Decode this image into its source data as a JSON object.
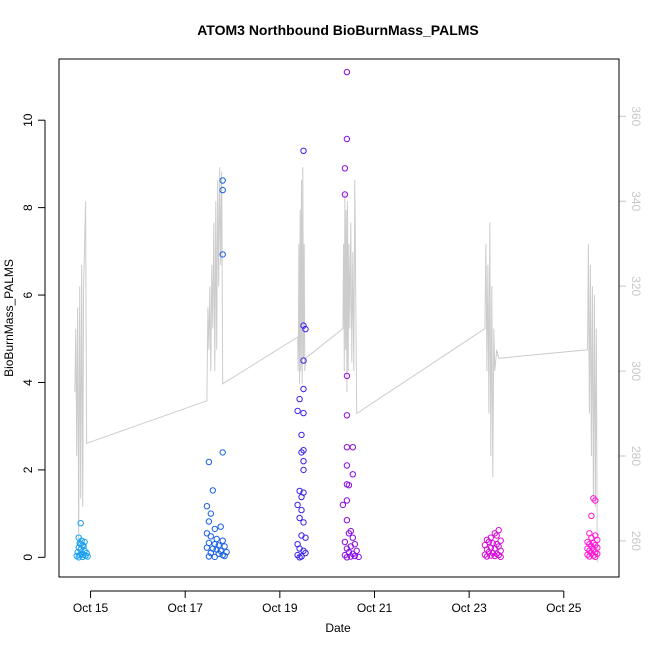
{
  "chart_data": {
    "type": "scatter",
    "title": "ATOM3 Northbound BioBurnMass_PALMS",
    "xlabel": "Date",
    "ylabel": "BioBurnMass_PALMS",
    "x_axis_type": "date",
    "xlim": [
      "2017-10-14T08:00",
      "2017-10-26T04:00"
    ],
    "ylim": [
      -0.45,
      11.4
    ],
    "y2lim": [
      251.5,
      373.5
    ],
    "x_ticks": [
      {
        "date": "2017-10-15",
        "label": "Oct 15"
      },
      {
        "date": "2017-10-17",
        "label": "Oct 17"
      },
      {
        "date": "2017-10-19",
        "label": "Oct 19"
      },
      {
        "date": "2017-10-21",
        "label": "Oct 21"
      },
      {
        "date": "2017-10-23",
        "label": "Oct 23"
      },
      {
        "date": "2017-10-25",
        "label": "Oct 25"
      }
    ],
    "y_ticks": [
      {
        "value": 0,
        "label": "0"
      },
      {
        "value": 2,
        "label": "2"
      },
      {
        "value": 4,
        "label": "4"
      },
      {
        "value": 6,
        "label": "6"
      },
      {
        "value": 8,
        "label": "8"
      },
      {
        "value": 10,
        "label": "10"
      }
    ],
    "y2_ticks": [
      {
        "value": 260,
        "label": "260"
      },
      {
        "value": 280,
        "label": "280"
      },
      {
        "value": 300,
        "label": "300"
      },
      {
        "value": 320,
        "label": "320"
      },
      {
        "value": 340,
        "label": "340"
      },
      {
        "value": 360,
        "label": "360"
      }
    ],
    "grid": false,
    "legend": "none",
    "secondary_line_color": "#cccccc",
    "secondary_axis_color": "#c8c8c8",
    "series": [
      {
        "color": "#1a9ff0",
        "points": [
          [
            "2017-10-14T19:00",
            0.78
          ],
          [
            "2017-10-14T18:00",
            0.45
          ],
          [
            "2017-10-14T19:30",
            0.38
          ],
          [
            "2017-10-14T18:30",
            0.32
          ],
          [
            "2017-10-14T20:00",
            0.28
          ],
          [
            "2017-10-14T20:30",
            0.25
          ],
          [
            "2017-10-14T18:00",
            0.22
          ],
          [
            "2017-10-14T19:00",
            0.18
          ],
          [
            "2017-10-14T21:00",
            0.15
          ],
          [
            "2017-10-14T17:30",
            0.12
          ],
          [
            "2017-10-14T22:00",
            0.1
          ],
          [
            "2017-10-14T19:30",
            0.08
          ],
          [
            "2017-10-14T20:30",
            0.06
          ],
          [
            "2017-10-14T18:30",
            0.05
          ],
          [
            "2017-10-14T21:30",
            0.04
          ],
          [
            "2017-10-14T17:00",
            0.03
          ],
          [
            "2017-10-14T22:30",
            0.02
          ],
          [
            "2017-10-14T20:00",
            0.01
          ],
          [
            "2017-10-14T19:00",
            0.3
          ],
          [
            "2017-10-14T21:00",
            0.35
          ],
          [
            "2017-10-14T18:00",
            0.0
          ]
        ]
      },
      {
        "color": "#1760e6",
        "points": [
          [
            "2017-10-17T19:00",
            8.62
          ],
          [
            "2017-10-17T19:00",
            8.4
          ],
          [
            "2017-10-17T19:00",
            6.93
          ],
          [
            "2017-10-17T19:00",
            2.4
          ],
          [
            "2017-10-17T12:00",
            2.18
          ],
          [
            "2017-10-17T14:00",
            1.53
          ],
          [
            "2017-10-17T11:00",
            1.17
          ],
          [
            "2017-10-17T13:00",
            1.0
          ],
          [
            "2017-10-17T12:00",
            0.82
          ],
          [
            "2017-10-17T18:00",
            0.7
          ],
          [
            "2017-10-17T15:00",
            0.65
          ],
          [
            "2017-10-17T11:00",
            0.55
          ],
          [
            "2017-10-17T13:00",
            0.48
          ],
          [
            "2017-10-17T16:00",
            0.42
          ],
          [
            "2017-10-17T19:00",
            0.38
          ],
          [
            "2017-10-17T12:00",
            0.33
          ],
          [
            "2017-10-17T15:00",
            0.3
          ],
          [
            "2017-10-17T17:00",
            0.27
          ],
          [
            "2017-10-17T20:00",
            0.25
          ],
          [
            "2017-10-17T11:00",
            0.22
          ],
          [
            "2017-10-17T14:00",
            0.2
          ],
          [
            "2017-10-17T16:00",
            0.18
          ],
          [
            "2017-10-17T18:00",
            0.15
          ],
          [
            "2017-10-17T21:00",
            0.12
          ],
          [
            "2017-10-17T13:00",
            0.1
          ],
          [
            "2017-10-17T17:00",
            0.08
          ],
          [
            "2017-10-17T19:00",
            0.05
          ],
          [
            "2017-10-17T20:00",
            0.03
          ],
          [
            "2017-10-17T12:00",
            0.02
          ],
          [
            "2017-10-17T15:00",
            0.01
          ]
        ]
      },
      {
        "color": "#3a22e8",
        "points": [
          [
            "2017-10-19T12:00",
            9.3
          ],
          [
            "2017-10-19T12:00",
            5.3
          ],
          [
            "2017-10-19T13:00",
            5.22
          ],
          [
            "2017-10-19T12:00",
            4.5
          ],
          [
            "2017-10-19T12:00",
            3.85
          ],
          [
            "2017-10-19T10:00",
            3.62
          ],
          [
            "2017-10-19T09:00",
            3.35
          ],
          [
            "2017-10-19T12:00",
            3.3
          ],
          [
            "2017-10-19T11:00",
            2.8
          ],
          [
            "2017-10-19T12:00",
            2.45
          ],
          [
            "2017-10-19T11:00",
            2.4
          ],
          [
            "2017-10-19T12:00",
            2.2
          ],
          [
            "2017-10-19T12:00",
            2.0
          ],
          [
            "2017-10-19T10:00",
            1.52
          ],
          [
            "2017-10-19T12:00",
            1.48
          ],
          [
            "2017-10-19T11:00",
            1.38
          ],
          [
            "2017-10-19T09:00",
            1.2
          ],
          [
            "2017-10-19T11:00",
            1.08
          ],
          [
            "2017-10-19T10:00",
            0.9
          ],
          [
            "2017-10-19T12:00",
            0.8
          ],
          [
            "2017-10-19T11:00",
            0.5
          ],
          [
            "2017-10-19T13:00",
            0.45
          ],
          [
            "2017-10-19T09:00",
            0.3
          ],
          [
            "2017-10-19T10:00",
            0.2
          ],
          [
            "2017-10-19T12:00",
            0.15
          ],
          [
            "2017-10-19T13:00",
            0.1
          ],
          [
            "2017-10-19T09:00",
            0.05
          ],
          [
            "2017-10-19T11:00",
            0.02
          ],
          [
            "2017-10-19T10:00",
            0.0
          ]
        ]
      },
      {
        "color": "#8a0be3",
        "points": [
          [
            "2017-10-20T10:00",
            11.1
          ],
          [
            "2017-10-20T10:00",
            9.57
          ],
          [
            "2017-10-20T09:00",
            8.9
          ],
          [
            "2017-10-20T09:00",
            8.3
          ],
          [
            "2017-10-20T10:00",
            4.15
          ],
          [
            "2017-10-20T10:00",
            3.25
          ],
          [
            "2017-10-20T10:00",
            2.52
          ],
          [
            "2017-10-20T13:00",
            2.52
          ],
          [
            "2017-10-20T10:00",
            2.1
          ],
          [
            "2017-10-20T13:00",
            1.9
          ],
          [
            "2017-10-20T10:00",
            1.67
          ],
          [
            "2017-10-20T11:00",
            1.65
          ],
          [
            "2017-10-20T10:00",
            1.3
          ],
          [
            "2017-10-20T08:00",
            1.2
          ],
          [
            "2017-10-20T10:00",
            0.85
          ],
          [
            "2017-10-20T12:00",
            0.6
          ],
          [
            "2017-10-20T11:00",
            0.55
          ],
          [
            "2017-10-20T13:00",
            0.45
          ],
          [
            "2017-10-20T09:00",
            0.35
          ],
          [
            "2017-10-20T14:00",
            0.3
          ],
          [
            "2017-10-20T12:00",
            0.25
          ],
          [
            "2017-10-20T10:00",
            0.2
          ],
          [
            "2017-10-20T15:00",
            0.15
          ],
          [
            "2017-10-20T11:00",
            0.12
          ],
          [
            "2017-10-20T13:00",
            0.08
          ],
          [
            "2017-10-20T09:00",
            0.05
          ],
          [
            "2017-10-20T14:00",
            0.03
          ],
          [
            "2017-10-20T12:00",
            0.02
          ],
          [
            "2017-10-20T16:00",
            0.01
          ],
          [
            "2017-10-20T10:00",
            0.0
          ]
        ]
      },
      {
        "color": "#d40cd6",
        "points": [
          [
            "2017-10-23T15:00",
            0.62
          ],
          [
            "2017-10-23T13:00",
            0.55
          ],
          [
            "2017-10-23T14:00",
            0.5
          ],
          [
            "2017-10-23T11:00",
            0.45
          ],
          [
            "2017-10-23T09:00",
            0.4
          ],
          [
            "2017-10-23T16:00",
            0.38
          ],
          [
            "2017-10-23T10:00",
            0.35
          ],
          [
            "2017-10-23T12:00",
            0.32
          ],
          [
            "2017-10-23T14:00",
            0.3
          ],
          [
            "2017-10-23T08:00",
            0.28
          ],
          [
            "2017-10-23T15:00",
            0.25
          ],
          [
            "2017-10-23T11:00",
            0.22
          ],
          [
            "2017-10-23T13:00",
            0.2
          ],
          [
            "2017-10-23T09:00",
            0.18
          ],
          [
            "2017-10-23T16:00",
            0.15
          ],
          [
            "2017-10-23T10:00",
            0.12
          ],
          [
            "2017-10-23T12:00",
            0.1
          ],
          [
            "2017-10-23T14:00",
            0.08
          ],
          [
            "2017-10-23T08:00",
            0.06
          ],
          [
            "2017-10-23T15:00",
            0.05
          ],
          [
            "2017-10-23T11:00",
            0.04
          ],
          [
            "2017-10-23T13:00",
            0.03
          ],
          [
            "2017-10-23T09:00",
            0.02
          ],
          [
            "2017-10-23T16:00",
            0.01
          ]
        ]
      },
      {
        "color": "#ff18d8",
        "points": [
          [
            "2017-10-25T15:00",
            1.35
          ],
          [
            "2017-10-25T16:00",
            1.3
          ],
          [
            "2017-10-25T14:00",
            0.95
          ],
          [
            "2017-10-25T13:00",
            0.55
          ],
          [
            "2017-10-25T16:00",
            0.5
          ],
          [
            "2017-10-25T14:00",
            0.45
          ],
          [
            "2017-10-25T17:00",
            0.4
          ],
          [
            "2017-10-25T12:00",
            0.35
          ],
          [
            "2017-10-25T15:00",
            0.32
          ],
          [
            "2017-10-25T13:00",
            0.3
          ],
          [
            "2017-10-25T16:00",
            0.28
          ],
          [
            "2017-10-25T14:00",
            0.25
          ],
          [
            "2017-10-25T17:00",
            0.22
          ],
          [
            "2017-10-25T12:00",
            0.2
          ],
          [
            "2017-10-25T15:00",
            0.18
          ],
          [
            "2017-10-25T13:00",
            0.15
          ],
          [
            "2017-10-25T16:00",
            0.12
          ],
          [
            "2017-10-25T14:00",
            0.1
          ],
          [
            "2017-10-25T17:00",
            0.08
          ],
          [
            "2017-10-25T12:00",
            0.06
          ],
          [
            "2017-10-25T15:00",
            0.04
          ],
          [
            "2017-10-25T13:00",
            0.02
          ],
          [
            "2017-10-25T16:00",
            0.01
          ]
        ]
      }
    ],
    "secondary_line": {
      "axis": "right",
      "points": [
        [
          "2017-10-14T16:00",
          295
        ],
        [
          "2017-10-14T16:30",
          310
        ],
        [
          "2017-10-14T17:00",
          280
        ],
        [
          "2017-10-14T17:30",
          315
        ],
        [
          "2017-10-14T18:00",
          260
        ],
        [
          "2017-10-14T18:30",
          320
        ],
        [
          "2017-10-14T19:00",
          270
        ],
        [
          "2017-10-14T19:30",
          325
        ],
        [
          "2017-10-14T20:00",
          268
        ],
        [
          "2017-10-14T20:30",
          320
        ],
        [
          "2017-10-14T21:00",
          330
        ],
        [
          "2017-10-14T21:30",
          340
        ],
        [
          "2017-10-14T22:00",
          283
        ],
        [
          "2017-10-17T11:00",
          293
        ],
        [
          "2017-10-17T11:30",
          315
        ],
        [
          "2017-10-17T12:00",
          305
        ],
        [
          "2017-10-17T12:30",
          320
        ],
        [
          "2017-10-17T13:00",
          300
        ],
        [
          "2017-10-17T13:30",
          325
        ],
        [
          "2017-10-17T14:00",
          310
        ],
        [
          "2017-10-17T14:30",
          335
        ],
        [
          "2017-10-17T15:00",
          300
        ],
        [
          "2017-10-17T15:30",
          340
        ],
        [
          "2017-10-17T16:00",
          305
        ],
        [
          "2017-10-17T16:30",
          345
        ],
        [
          "2017-10-17T17:00",
          320
        ],
        [
          "2017-10-17T17:30",
          348
        ],
        [
          "2017-10-17T18:00",
          325
        ],
        [
          "2017-10-17T18:30",
          347
        ],
        [
          "2017-10-17T19:00",
          297
        ],
        [
          "2017-10-19T09:00",
          308
        ],
        [
          "2017-10-19T09:20",
          300
        ],
        [
          "2017-10-19T09:40",
          330
        ],
        [
          "2017-10-19T10:00",
          297
        ],
        [
          "2017-10-19T10:20",
          338
        ],
        [
          "2017-10-19T10:40",
          300
        ],
        [
          "2017-10-19T11:00",
          345
        ],
        [
          "2017-10-19T11:20",
          297
        ],
        [
          "2017-10-19T11:40",
          348
        ],
        [
          "2017-10-19T12:00",
          303
        ],
        [
          "2017-10-19T12:20",
          330
        ],
        [
          "2017-10-19T12:40",
          300
        ],
        [
          "2017-10-19T13:00",
          303
        ],
        [
          "2017-10-20T08:00",
          310
        ],
        [
          "2017-10-20T08:20",
          330
        ],
        [
          "2017-10-20T08:40",
          300
        ],
        [
          "2017-10-20T09:00",
          342
        ],
        [
          "2017-10-20T09:20",
          305
        ],
        [
          "2017-10-20T09:40",
          338
        ],
        [
          "2017-10-20T10:00",
          295
        ],
        [
          "2017-10-20T10:20",
          340
        ],
        [
          "2017-10-20T10:40",
          300
        ],
        [
          "2017-10-20T11:00",
          330
        ],
        [
          "2017-10-20T11:30",
          310
        ],
        [
          "2017-10-20T12:00",
          335
        ],
        [
          "2017-10-20T12:30",
          302
        ],
        [
          "2017-10-20T13:00",
          328
        ],
        [
          "2017-10-20T13:30",
          300
        ],
        [
          "2017-10-20T14:00",
          345
        ],
        [
          "2017-10-20T15:00",
          290
        ],
        [
          "2017-10-23T08:00",
          310
        ],
        [
          "2017-10-23T08:30",
          330
        ],
        [
          "2017-10-23T09:00",
          300
        ],
        [
          "2017-10-23T09:30",
          325
        ],
        [
          "2017-10-23T10:00",
          290
        ],
        [
          "2017-10-23T10:30",
          335
        ],
        [
          "2017-10-23T11:00",
          280
        ],
        [
          "2017-10-23T11:30",
          320
        ],
        [
          "2017-10-23T12:00",
          275
        ],
        [
          "2017-10-23T12:30",
          310
        ],
        [
          "2017-10-23T13:00",
          300
        ],
        [
          "2017-10-23T14:00",
          305
        ],
        [
          "2017-10-23T15:00",
          303
        ],
        [
          "2017-10-25T12:00",
          305
        ],
        [
          "2017-10-25T12:30",
          330
        ],
        [
          "2017-10-25T13:00",
          290
        ],
        [
          "2017-10-25T13:30",
          325
        ],
        [
          "2017-10-25T14:00",
          280
        ],
        [
          "2017-10-25T14:30",
          320
        ],
        [
          "2017-10-25T15:00",
          270
        ],
        [
          "2017-10-25T15:30",
          318
        ],
        [
          "2017-10-25T16:00",
          268
        ],
        [
          "2017-10-25T16:30",
          310
        ],
        [
          "2017-10-25T17:00",
          255
        ]
      ]
    }
  }
}
